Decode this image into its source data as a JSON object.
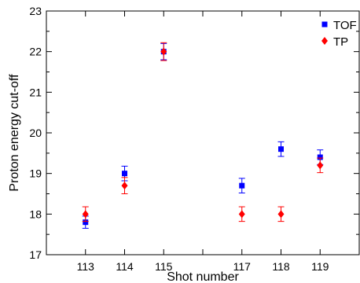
{
  "chart_data": {
    "type": "scatter",
    "title": "",
    "xlabel": "Shot number",
    "ylabel": "Proton energy cut-off",
    "xlim": [
      112,
      120
    ],
    "ylim": [
      17,
      23
    ],
    "xticks": [
      "113",
      "114",
      "115",
      "117",
      "118",
      "119"
    ],
    "yticks": [
      "17",
      "18",
      "19",
      "20",
      "21",
      "22",
      "23"
    ],
    "grid": false,
    "legend_position": "top-right",
    "series": [
      {
        "name": "TOF",
        "marker": "square",
        "color": "#0000ff",
        "points": [
          {
            "x": 113,
            "y": 17.8,
            "err": 0.15
          },
          {
            "x": 114,
            "y": 19.0,
            "err": 0.18
          },
          {
            "x": 115,
            "y": 22.0,
            "err": 0.2
          },
          {
            "x": 117,
            "y": 18.7,
            "err": 0.18
          },
          {
            "x": 118,
            "y": 19.6,
            "err": 0.18
          },
          {
            "x": 119,
            "y": 19.4,
            "err": 0.18
          }
        ]
      },
      {
        "name": "TP",
        "marker": "diamond",
        "color": "#ff0000",
        "points": [
          {
            "x": 113,
            "y": 18.0,
            "err": 0.18
          },
          {
            "x": 114,
            "y": 18.7,
            "err": 0.2
          },
          {
            "x": 115,
            "y": 22.0,
            "err": 0.22
          },
          {
            "x": 117,
            "y": 18.0,
            "err": 0.18
          },
          {
            "x": 118,
            "y": 18.0,
            "err": 0.18
          },
          {
            "x": 119,
            "y": 19.2,
            "err": 0.18
          }
        ]
      }
    ]
  }
}
